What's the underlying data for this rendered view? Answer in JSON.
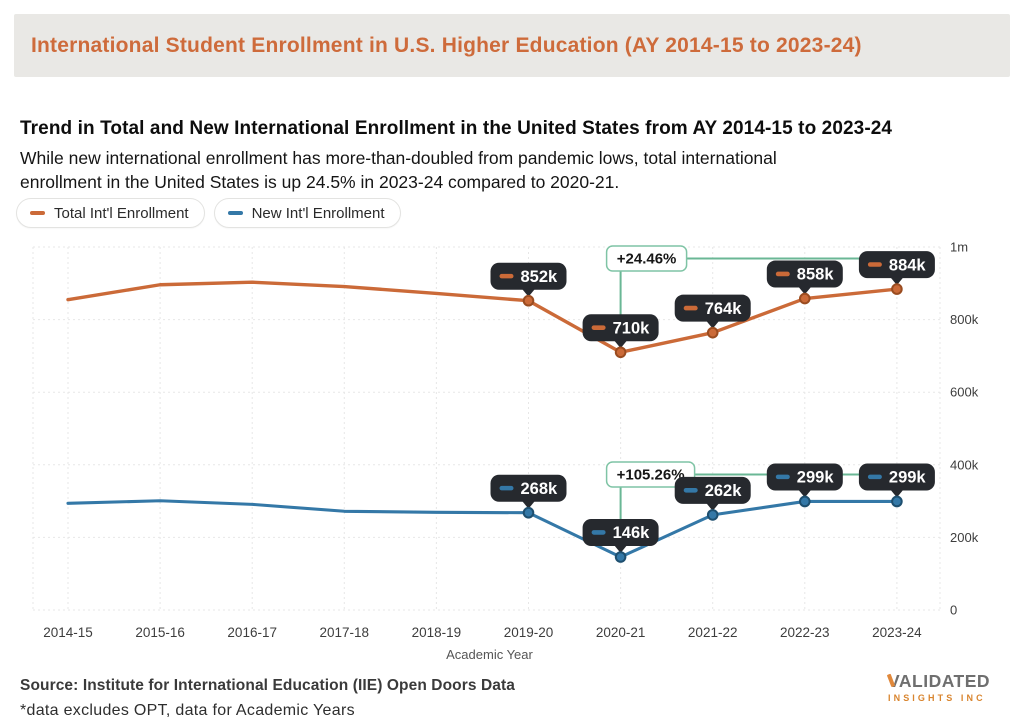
{
  "header": {
    "title": "International Student Enrollment in U.S. Higher Education (AY 2014-15 to 2023-24)"
  },
  "headline": {
    "title": "Trend in Total and New International Enrollment in the United States from AY 2014-15 to 2023-24",
    "subtitle_lines": [
      "While new international enrollment has more-than-doubled from pandemic lows, total international",
      "enrollment in the United States is up 24.5% in 2023-24 compared to 2020-21."
    ]
  },
  "legend": [
    {
      "label": "Total Int'l Enrollment",
      "color": "#cb6a38"
    },
    {
      "label": "New Int'l Enrollment",
      "color": "#3478a7"
    }
  ],
  "colors": {
    "orange": "#cb6a38",
    "blue": "#3478a7",
    "green": "#6ab795",
    "green_border": "#7fc4a5",
    "badge_bg": "#26292e",
    "badge_text": "#ffffff",
    "grid": "#e7e7e7",
    "axis_text": "#3d3d3d"
  },
  "chart_data": {
    "type": "line",
    "categories": [
      "2014-15",
      "2015-16",
      "2016-17",
      "2017-18",
      "2018-19",
      "2019-20",
      "2020-21",
      "2021-22",
      "2022-23",
      "2023-24"
    ],
    "xlabel": "Academic Year",
    "ylim": [
      0,
      1000
    ],
    "unit": "thousands of students",
    "grid": true,
    "legend_position": "top-left",
    "y_axis_side": "right",
    "y_ticks": [
      {
        "value": 0,
        "label": "0"
      },
      {
        "value": 200,
        "label": "200k"
      },
      {
        "value": 400,
        "label": "400k"
      },
      {
        "value": 600,
        "label": "600k"
      },
      {
        "value": 800,
        "label": "800k"
      },
      {
        "value": 1000,
        "label": "1m"
      }
    ],
    "series": [
      {
        "name": "Total Int'l Enrollment",
        "color": "#cb6a38",
        "dot_stroke": "#9a4c20",
        "values": [
          855,
          896,
          903,
          891,
          872,
          852,
          710,
          764,
          858,
          884
        ],
        "point_labels": [
          null,
          null,
          null,
          null,
          null,
          "852k",
          "710k",
          "764k",
          "858k",
          "884k"
        ]
      },
      {
        "name": "New Int'l Enrollment",
        "color": "#3478a7",
        "dot_stroke": "#1e4f6f",
        "values": [
          294,
          301,
          291,
          272,
          269,
          268,
          146,
          262,
          299,
          299
        ],
        "point_labels": [
          null,
          null,
          null,
          null,
          null,
          "268k",
          "146k",
          "262k",
          "299k",
          "299k"
        ]
      }
    ],
    "annotations": [
      {
        "text": "+24.46%",
        "series": 0,
        "from_category": "2020-21",
        "to_category": "2023-24"
      },
      {
        "text": "+105.26%",
        "series": 1,
        "from_category": "2020-21",
        "to_category": "2023-24"
      }
    ]
  },
  "footer": {
    "source": "Source: Institute for International Education (IIE) Open Doors Data",
    "note": "*data excludes OPT, data for Academic Years",
    "logo_line1": "VALIDATED",
    "logo_line2": "INSIGHTS INC"
  }
}
